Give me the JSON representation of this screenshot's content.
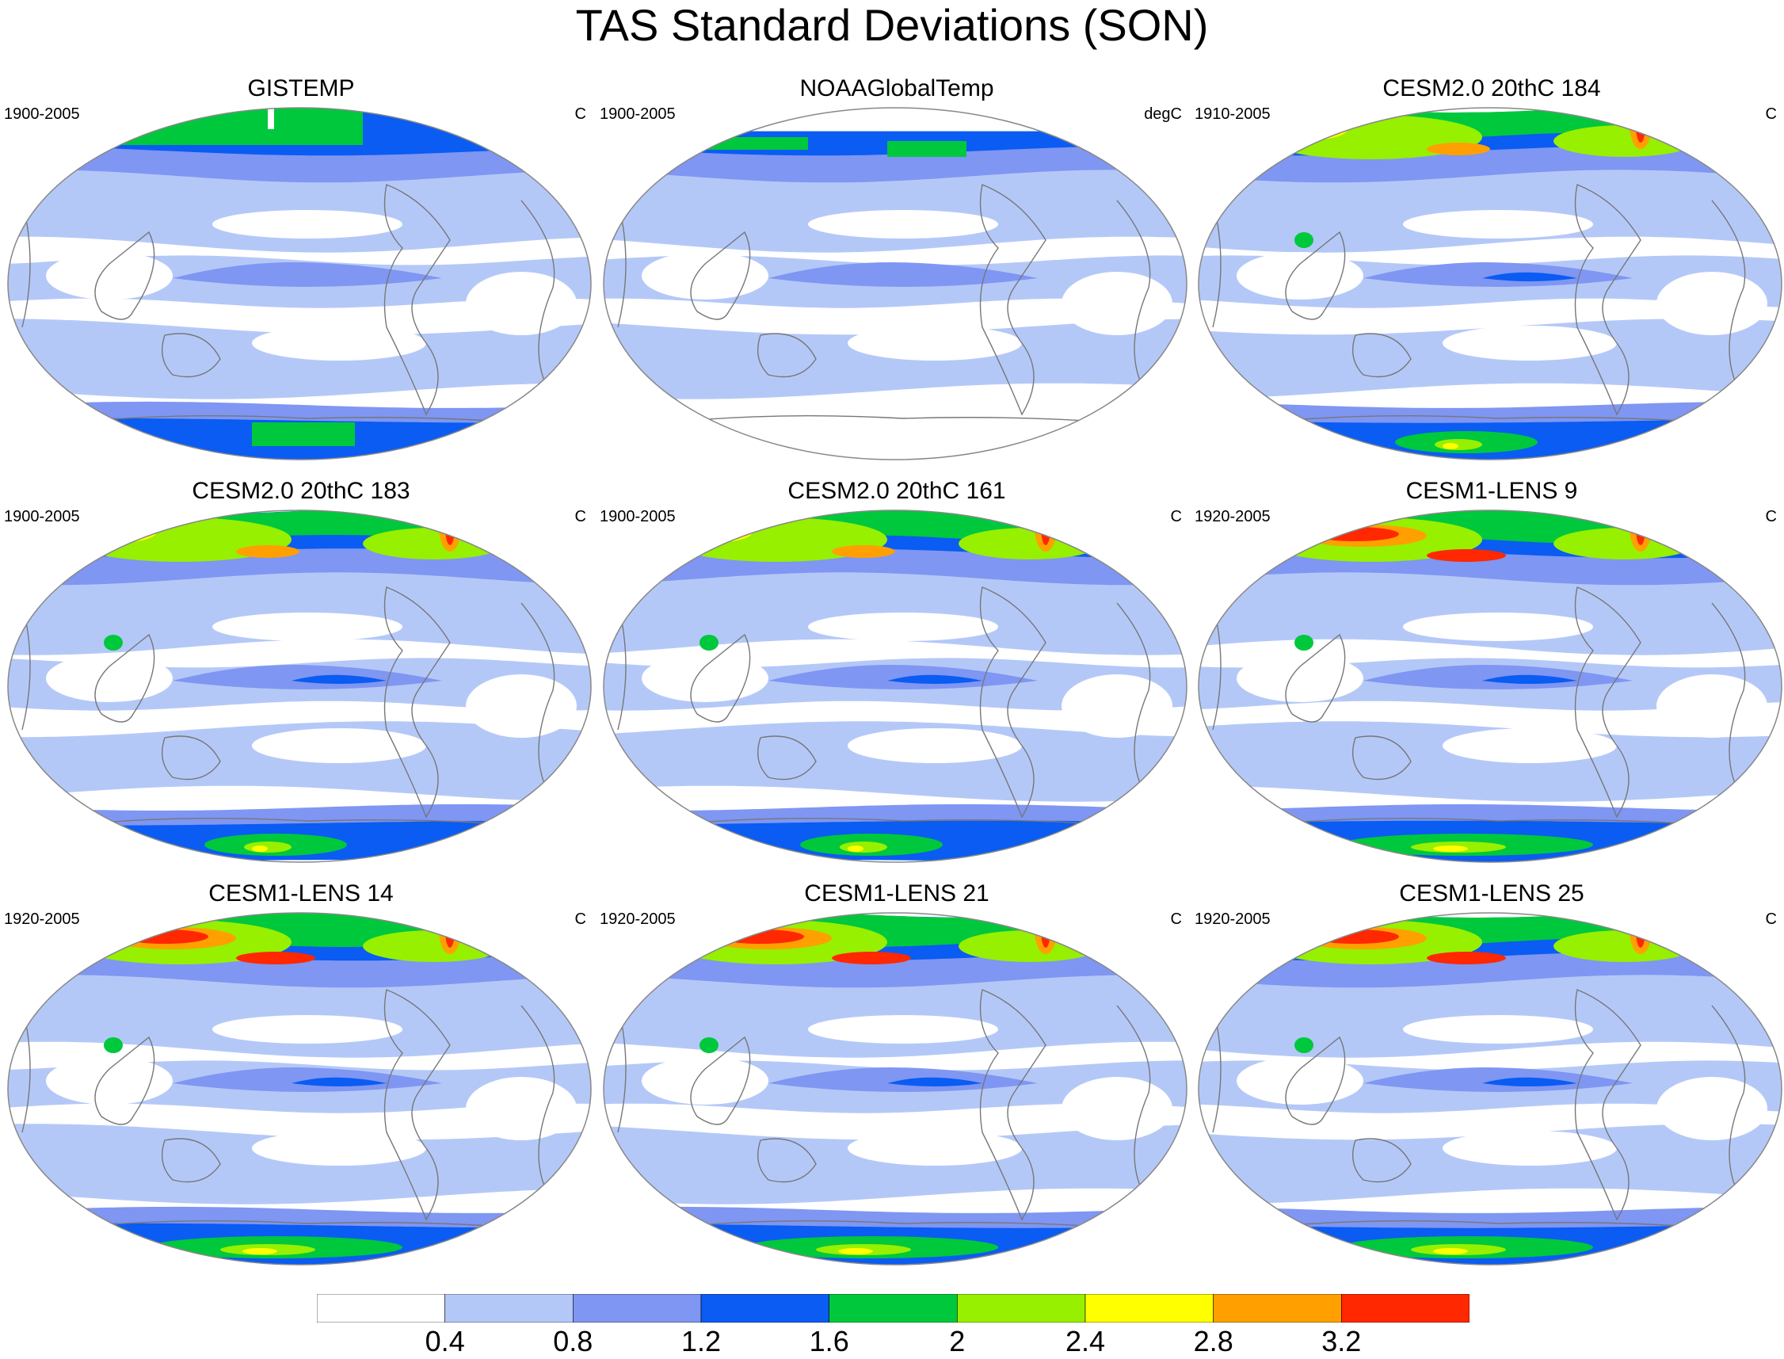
{
  "figure": {
    "title": "TAS Standard Deviations (SON)"
  },
  "panels": [
    {
      "title": "GISTEMP",
      "period": "1900-2005",
      "units": "C",
      "style": "obs_gistemp"
    },
    {
      "title": "NOAAGlobalTemp",
      "period": "1900-2005",
      "units": "degC",
      "style": "obs_noaa"
    },
    {
      "title": "CESM2.0 20thC 184",
      "period": "1910-2005",
      "units": "C",
      "style": "model_mid"
    },
    {
      "title": "CESM2.0 20thC 183",
      "period": "1900-2005",
      "units": "C",
      "style": "model_mid"
    },
    {
      "title": "CESM2.0 20thC 161",
      "period": "1900-2005",
      "units": "C",
      "style": "model_mid"
    },
    {
      "title": "CESM1-LENS 9",
      "period": "1920-2005",
      "units": "C",
      "style": "model_high"
    },
    {
      "title": "CESM1-LENS 14",
      "period": "1920-2005",
      "units": "C",
      "style": "model_high"
    },
    {
      "title": "CESM1-LENS 21",
      "period": "1920-2005",
      "units": "C",
      "style": "model_high"
    },
    {
      "title": "CESM1-LENS 25",
      "period": "1920-2005",
      "units": "C",
      "style": "model_high"
    }
  ],
  "colorbar": {
    "colors": [
      "#ffffff",
      "#b4c8f8",
      "#7f96f2",
      "#0a5cf2",
      "#00c83c",
      "#96f000",
      "#ffff00",
      "#ffa000",
      "#ff2800"
    ],
    "labels": [
      "0.4",
      "0.8",
      "1.2",
      "1.6",
      "2",
      "2.4",
      "2.8",
      "3.2"
    ]
  }
}
